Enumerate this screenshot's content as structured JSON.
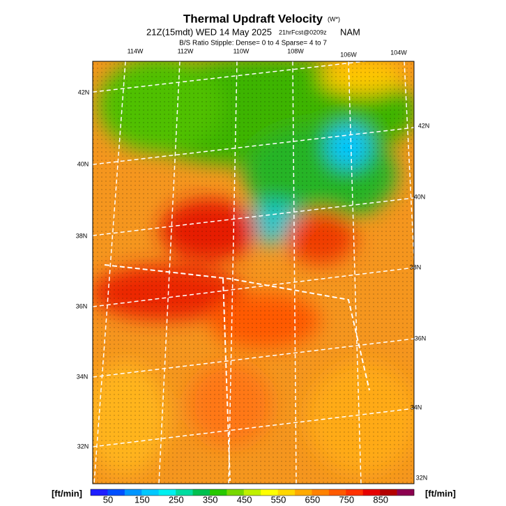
{
  "header": {
    "title": "Thermal Updraft Velocity",
    "title_unit": "(W*)",
    "subtitle": "21Z(15mdt) WED 14 May 2025",
    "forecast": "21hrFcst@0209z",
    "model": "NAM",
    "stipple": "B/S Ratio Stipple:  Dense= 0 to 4  Sparse= 4 to 7"
  },
  "map": {
    "lon_labels": [
      "114W",
      "112W",
      "110W",
      "108W",
      "106W",
      "104W"
    ],
    "lat_labels_left": [
      "42N",
      "40N",
      "38N",
      "36N",
      "34N",
      "32N"
    ],
    "lat_labels_right": [
      "42N",
      "40N",
      "38N",
      "36N",
      "34N",
      "32N"
    ]
  },
  "colorbar": {
    "unit_left": "[ft/min]",
    "unit_right": "[ft/min]",
    "labels": [
      "50",
      "150",
      "250",
      "350",
      "450",
      "550",
      "650",
      "750",
      "850"
    ],
    "colors": [
      "#1e1eff",
      "#0050ff",
      "#0096ff",
      "#00c8ff",
      "#00f0f0",
      "#00dca0",
      "#00c050",
      "#28c800",
      "#78d800",
      "#c0f000",
      "#ffff00",
      "#ffd700",
      "#ffaa00",
      "#ff8200",
      "#ff5a00",
      "#ff3200",
      "#e60000",
      "#b40000",
      "#8c0050"
    ]
  }
}
